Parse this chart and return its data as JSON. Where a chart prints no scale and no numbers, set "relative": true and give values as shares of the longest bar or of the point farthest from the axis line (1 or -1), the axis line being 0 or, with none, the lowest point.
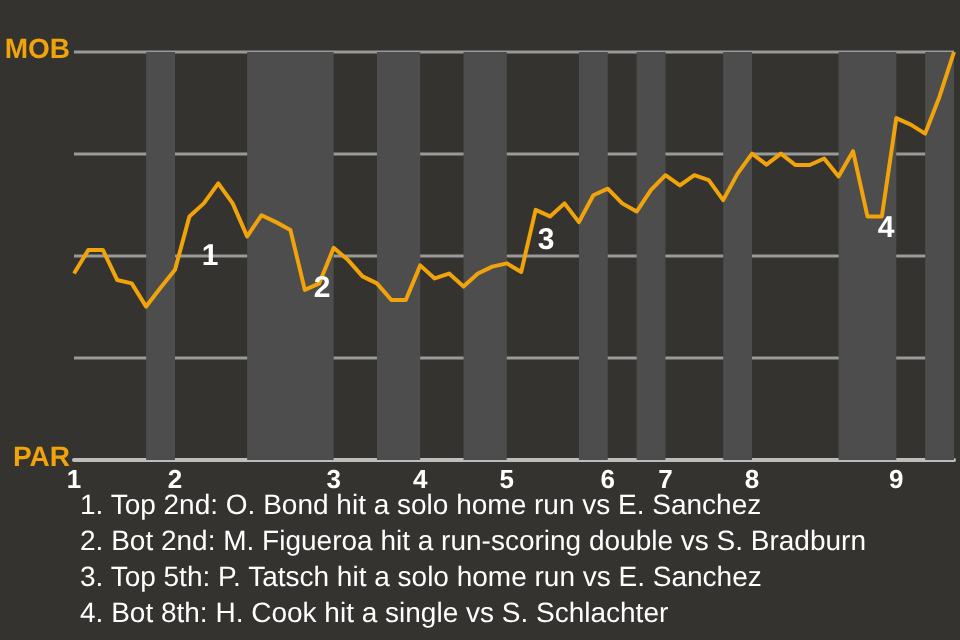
{
  "chart_data": {
    "type": "line",
    "relative": true,
    "categories": [
      "1",
      null,
      null,
      null,
      null,
      null,
      null,
      "2",
      null,
      null,
      null,
      null,
      null,
      null,
      null,
      null,
      null,
      null,
      "3",
      null,
      null,
      null,
      null,
      null,
      "4",
      null,
      null,
      null,
      null,
      null,
      "5",
      null,
      null,
      null,
      null,
      null,
      null,
      "6",
      null,
      null,
      null,
      "7",
      null,
      null,
      null,
      null,
      null,
      "8",
      null,
      null,
      null,
      null,
      null,
      null,
      null,
      null,
      null,
      "9",
      null,
      null,
      null,
      null
    ],
    "series": [
      {
        "color": "#f0a30a",
        "values": [
          0.457,
          0.515,
          0.515,
          0.441,
          0.433,
          0.376,
          0.422,
          0.466,
          0.597,
          0.629,
          0.678,
          0.629,
          0.548,
          0.6,
          0.583,
          0.564,
          0.417,
          0.433,
          0.52,
          0.49,
          0.45,
          0.433,
          0.392,
          0.392,
          0.477,
          0.445,
          0.457,
          0.425,
          0.457,
          0.474,
          0.482,
          0.461,
          0.613,
          0.597,
          0.629,
          0.583,
          0.649,
          0.665,
          0.629,
          0.609,
          0.662,
          0.698,
          0.673,
          0.698,
          0.686,
          0.637,
          0.702,
          0.751,
          0.724,
          0.751,
          0.723,
          0.723,
          0.739,
          0.695,
          0.757,
          0.597,
          0.597,
          0.838,
          0.822,
          0.8,
          0.891,
          1
        ]
      }
    ],
    "grid": "y",
    "marker": "none",
    "line_style": "solid",
    "annotations": [
      "MOB",
      "PAR",
      "1",
      "2",
      "3",
      "4",
      "1. Top 2nd: O. Bond hit a solo home run vs E. Sanchez",
      "2. Bot 2nd: M. Figueroa hit a run-scoring double vs S. Bradburn",
      "3. Top 5th: P. Tatsch hit a solo home run vs E. Sanchez",
      "4. Bot 8th: H. Cook hit a single vs S. Schlachter"
    ]
  }
}
